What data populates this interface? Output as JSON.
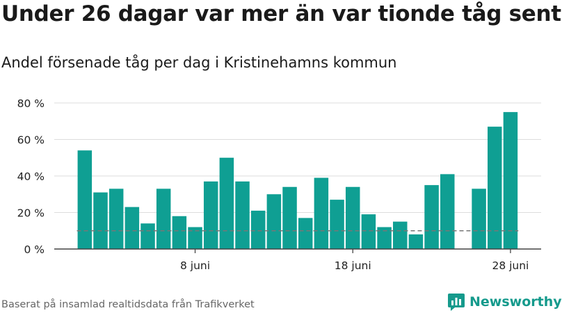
{
  "title": "Under 26 dagar var mer än var tionde tåg sent",
  "subtitle": "Andel försenade tåg per dag i Kristinehamns kommun",
  "footer": {
    "source": "Baserat på insamlad realtidsdata från Trafikverket",
    "brand": "Newsworthy"
  },
  "colors": {
    "bar": "#0f9f93",
    "threshold_line": "#777777",
    "grid": "#dddddd",
    "axis": "#444444",
    "brand": "#159a8c"
  },
  "chart_data": {
    "type": "bar",
    "x_start_day": 1,
    "x_end_day": 29,
    "x_ticks": [
      {
        "day": 8,
        "label": "8 juni"
      },
      {
        "day": 18,
        "label": "18 juni"
      },
      {
        "day": 28,
        "label": "28 juni"
      }
    ],
    "values": [
      54,
      31,
      33,
      23,
      14,
      33,
      18,
      12,
      37,
      50,
      37,
      21,
      30,
      34,
      17,
      39,
      27,
      34,
      19,
      12,
      15,
      8,
      35,
      41,
      null,
      33,
      67,
      75
    ],
    "threshold": 10,
    "ylim": [
      0,
      80
    ],
    "y_ticks": [
      0,
      20,
      40,
      60,
      80
    ],
    "y_tick_labels": [
      "0 %",
      "20 %",
      "40 %",
      "60 %",
      "80 %"
    ],
    "grid": true
  }
}
